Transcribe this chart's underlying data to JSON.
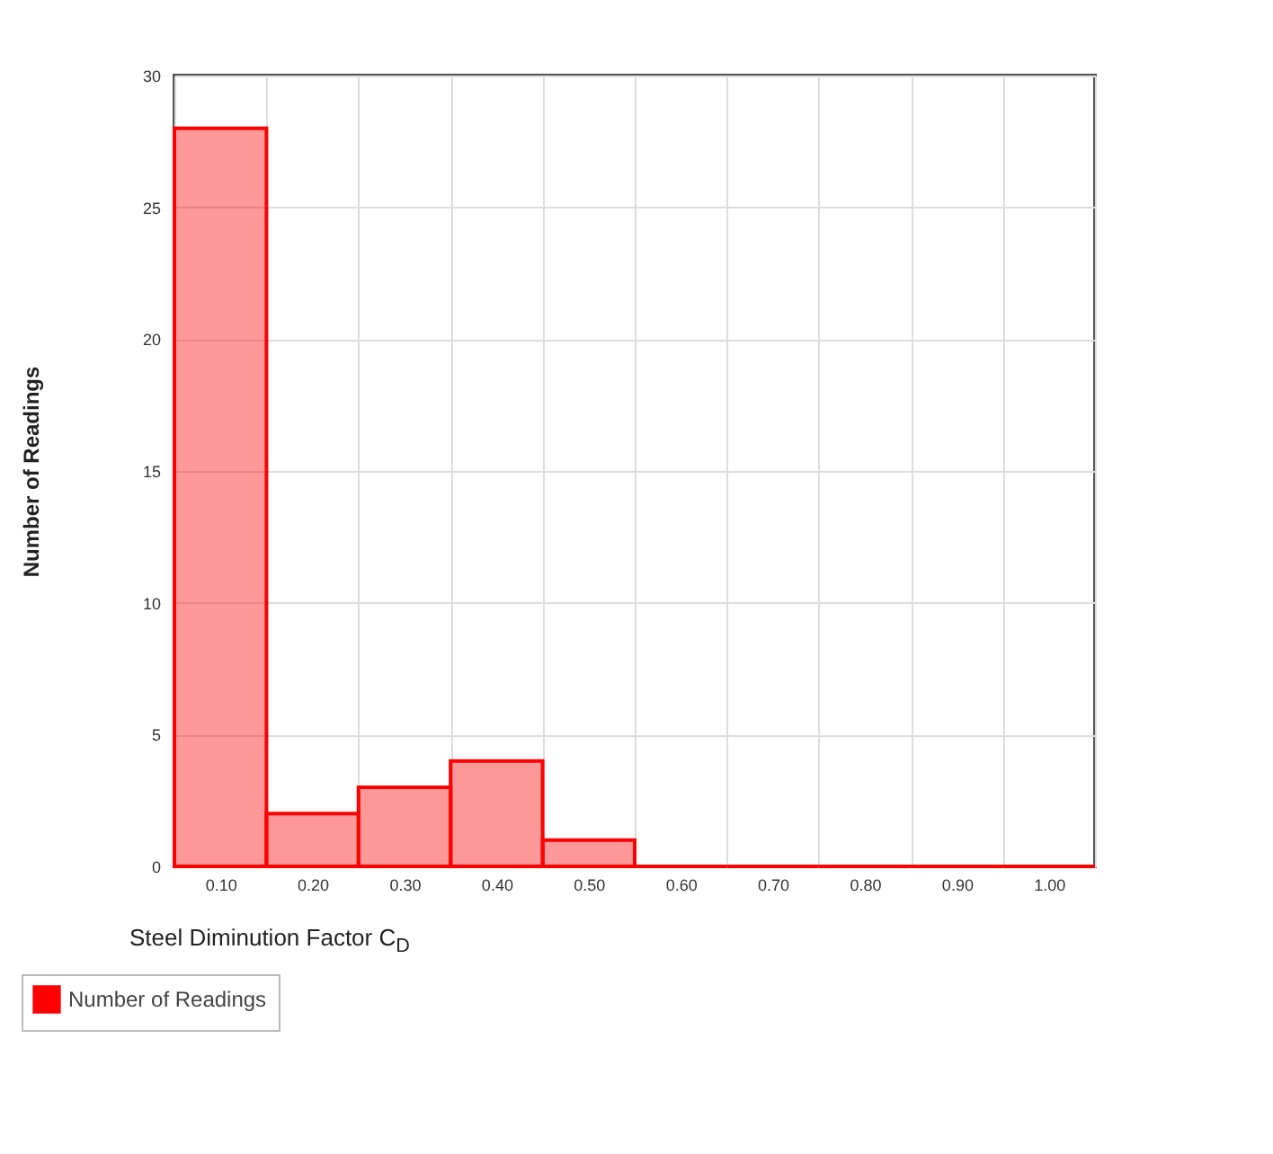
{
  "chart_data": {
    "type": "bar",
    "xlabel": "Steel Diminution Factor C$_{D}$",
    "ylabel": "Number of Readings",
    "categories": [
      "0.10",
      "0.20",
      "0.30",
      "0.40",
      "0.50",
      "0.60",
      "0.70",
      "0.80",
      "0.90",
      "1.00"
    ],
    "series": [
      {
        "name": "Number of Readings",
        "color": "#ff0000",
        "values": [
          28,
          2,
          3,
          4,
          1,
          0,
          0,
          0,
          0,
          0
        ]
      }
    ],
    "ylim": [
      0,
      30
    ],
    "yticks": [
      0,
      5,
      10,
      15,
      20,
      25,
      30
    ],
    "grid": true,
    "legend": "bottom left"
  }
}
